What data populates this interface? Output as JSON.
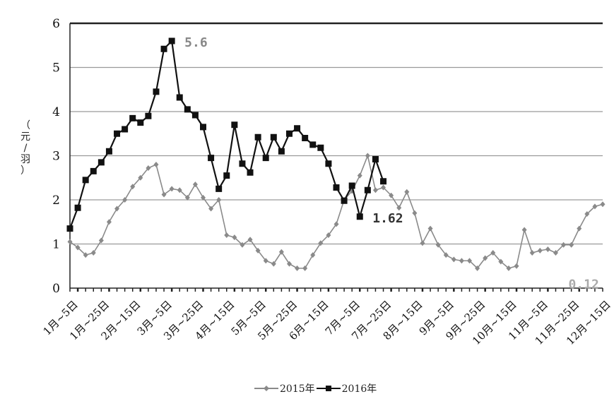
{
  "chart_data": {
    "type": "line",
    "ylabel": "（元/羽）",
    "ylim": [
      0,
      6
    ],
    "yticks": [
      0,
      1,
      2,
      3,
      4,
      5,
      6
    ],
    "grid": true,
    "legend_position": "bottom-center",
    "xtick_labels": [
      "1月~5日",
      "1月~25日",
      "2月~15日",
      "3月~5日",
      "3月~25日",
      "4月~15日",
      "5月~5日",
      "5月~25日",
      "6月~15日",
      "7月~5日",
      "7月~25日",
      "8月~15日",
      "9月~5日",
      "9月~25日",
      "10月~15日",
      "11月~5日",
      "11月~25日",
      "12月~15日"
    ],
    "series": [
      {
        "name": "2015年",
        "color": "#8a8a8a",
        "marker": "diamond",
        "values": [
          1.05,
          0.92,
          0.75,
          0.8,
          1.08,
          1.5,
          1.8,
          2.0,
          2.3,
          2.5,
          2.72,
          2.8,
          2.12,
          2.25,
          2.22,
          2.05,
          2.35,
          2.05,
          1.8,
          2.0,
          1.2,
          1.15,
          0.98,
          1.1,
          0.85,
          0.62,
          0.55,
          0.82,
          0.55,
          0.45,
          0.45,
          0.75,
          1.02,
          1.2,
          1.45,
          2.0,
          2.2,
          2.55,
          3.0,
          2.22,
          2.28,
          2.1,
          1.82,
          2.18,
          1.7,
          1.02,
          1.35,
          0.98,
          0.75,
          0.65,
          0.62,
          0.62,
          0.45,
          0.68,
          0.8,
          0.6,
          0.45,
          0.5,
          1.32,
          0.8,
          0.85,
          0.88,
          0.8,
          0.98,
          0.98,
          1.35,
          1.68,
          1.85,
          1.9
        ]
      },
      {
        "name": "2016年",
        "color": "#111111",
        "marker": "square",
        "values": [
          1.35,
          1.82,
          2.45,
          2.65,
          2.85,
          3.1,
          3.5,
          3.6,
          3.85,
          3.75,
          3.9,
          4.45,
          5.42,
          5.6,
          4.32,
          4.05,
          3.92,
          3.65,
          2.95,
          2.25,
          2.55,
          3.7,
          2.82,
          2.62,
          3.42,
          2.95,
          3.42,
          3.1,
          3.5,
          3.62,
          3.4,
          3.25,
          3.18,
          2.82,
          2.28,
          1.98,
          2.32,
          1.62,
          2.22,
          2.92,
          2.42
        ]
      }
    ],
    "annotations": [
      {
        "text": "5.6",
        "x": 13,
        "y": 5.6
      },
      {
        "text": "1.62",
        "x": 37,
        "y": 1.62
      },
      {
        "text": "0.12",
        "x": 62,
        "y": 0.12
      }
    ]
  },
  "labels": {
    "ylabel_line1": "（",
    "ylabel_line2": "元",
    "ylabel_line3": "/",
    "ylabel_line4": "羽",
    "ylabel_line5": "）"
  }
}
